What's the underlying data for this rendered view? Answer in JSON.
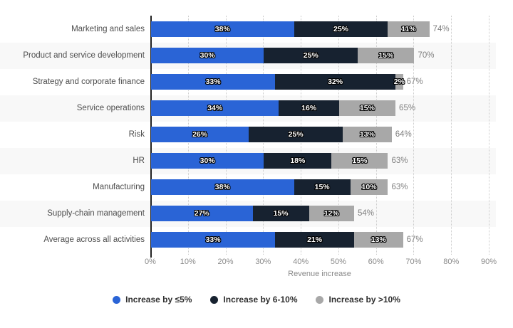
{
  "chart_data": {
    "type": "bar",
    "orientation": "horizontal",
    "stacked": true,
    "title": "",
    "xlabel": "Revenue increase",
    "ylabel": "",
    "xlim": [
      0,
      90
    ],
    "x_tick_labels": [
      "0%",
      "10%",
      "20%",
      "30%",
      "40%",
      "50%",
      "60%",
      "70%",
      "80%",
      "90%"
    ],
    "grid": "vertical-dotted",
    "legend_position": "bottom",
    "row_striping": true,
    "categories": [
      "Marketing and sales",
      "Product and service development",
      "Strategy and corporate finance",
      "Service operations",
      "Risk",
      "HR",
      "Manufacturing",
      "Supply-chain management",
      "Average across all activities"
    ],
    "series": [
      {
        "name": "Increase by ≤5%",
        "color": "#2a64d6",
        "values": [
          38,
          30,
          33,
          34,
          26,
          30,
          38,
          27,
          33
        ]
      },
      {
        "name": "Increase by 6-10%",
        "color": "#172230",
        "values": [
          25,
          25,
          32,
          16,
          25,
          18,
          15,
          15,
          21
        ]
      },
      {
        "name": "Increase by >10%",
        "color": "#a8a8a8",
        "values": [
          11,
          15,
          2,
          15,
          13,
          15,
          10,
          12,
          13
        ]
      }
    ],
    "totals": [
      74,
      70,
      67,
      65,
      64,
      63,
      63,
      54,
      67
    ],
    "value_suffix": "%"
  },
  "colors": {
    "band": "#f8f8f8",
    "gridline": "#cccccc",
    "axis": "#222222",
    "category_label": "#4d4d4d",
    "tick_label": "#8a8a8a",
    "total_label": "#808080"
  }
}
